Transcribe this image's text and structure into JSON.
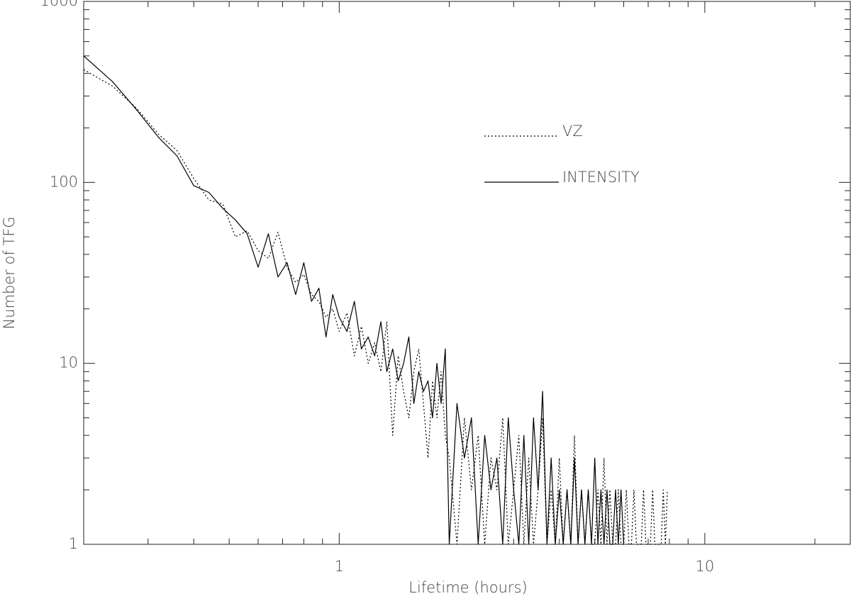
{
  "chart_data": {
    "type": "line",
    "x_label": "Lifetime (hours)",
    "y_label": "Number of TFG",
    "log_x": true,
    "log_y": true,
    "xlim": [
      0.2,
      25
    ],
    "ylim": [
      1,
      1000
    ],
    "xticks": [
      1,
      10
    ],
    "yticks": [
      1,
      10,
      100,
      1000
    ],
    "xminorticks": [
      0.3,
      0.4,
      0.5,
      0.6,
      0.7,
      0.8,
      0.9,
      2,
      3,
      4,
      5,
      6,
      7,
      8,
      9,
      20
    ],
    "yminorticks": [
      2,
      3,
      4,
      5,
      6,
      7,
      8,
      9,
      20,
      30,
      40,
      50,
      60,
      70,
      80,
      90,
      200,
      300,
      400,
      500,
      600,
      700,
      800,
      900
    ],
    "legend": "upper center",
    "x": [
      0.2,
      0.24,
      0.28,
      0.32,
      0.36,
      0.4,
      0.44,
      0.48,
      0.52,
      0.56,
      0.6,
      0.64,
      0.68,
      0.72,
      0.76,
      0.8,
      0.84,
      0.88,
      0.92,
      0.96,
      1.0,
      1.05,
      1.1,
      1.15,
      1.2,
      1.25,
      1.3,
      1.35,
      1.4,
      1.45,
      1.5,
      1.55,
      1.6,
      1.65,
      1.7,
      1.75,
      1.8,
      1.85,
      1.9,
      1.95,
      2.0,
      2.1,
      2.2,
      2.3,
      2.4,
      2.5,
      2.6,
      2.7,
      2.8,
      2.9,
      3.0,
      3.1,
      3.2,
      3.3,
      3.4,
      3.5,
      3.6,
      3.7,
      3.8,
      3.9,
      4.0,
      4.1,
      4.2,
      4.3,
      4.4,
      4.5,
      4.6,
      4.7,
      4.8,
      4.9,
      5.0,
      5.1,
      5.2,
      5.3,
      5.4,
      5.5,
      5.6,
      5.7,
      5.8,
      5.9,
      6.0,
      6.1,
      6.2,
      6.3,
      6.4,
      6.5,
      6.6,
      6.7,
      6.8,
      6.9,
      7.0,
      7.1,
      7.2,
      7.3,
      7.4,
      7.5,
      7.6,
      7.7,
      7.8,
      7.9
    ],
    "series": [
      {
        "name": "VZ",
        "color": "#000000",
        "dash": "dotted",
        "values": [
          420,
          340,
          255,
          185,
          150,
          105,
          80,
          76,
          50,
          54,
          42,
          38,
          53,
          34,
          28,
          31,
          24,
          22,
          18,
          20,
          15,
          19,
          11,
          16,
          10,
          13,
          9,
          17,
          4,
          11,
          7,
          5,
          9,
          12,
          6,
          3,
          8,
          5,
          9,
          4,
          3,
          1,
          5,
          2,
          4,
          1,
          3,
          2,
          5,
          1,
          2,
          4,
          1,
          3,
          1,
          2,
          5,
          1,
          2,
          1,
          3,
          1,
          2,
          1,
          4,
          1,
          2,
          1,
          2,
          1,
          1,
          2,
          1,
          3,
          1,
          2,
          1,
          1,
          2,
          1,
          1,
          2,
          1,
          1,
          2,
          1,
          1,
          1,
          2,
          1,
          1,
          1,
          2,
          1,
          1,
          1,
          1,
          2,
          1,
          2
        ]
      },
      {
        "name": "INTENSITY",
        "color": "#000000",
        "dash": "solid",
        "values": [
          500,
          360,
          250,
          178,
          140,
          96,
          88,
          72,
          62,
          52,
          34,
          52,
          30,
          36,
          24,
          36,
          22,
          26,
          14,
          24,
          18,
          15,
          22,
          12,
          14,
          11,
          17,
          9,
          12,
          8,
          10,
          14,
          6,
          9,
          7,
          8,
          5,
          10,
          6,
          12,
          1,
          6,
          3,
          5,
          1,
          4,
          2,
          3,
          1,
          5,
          2,
          1,
          4,
          1,
          5,
          2,
          7,
          1,
          3,
          1,
          2,
          1,
          2,
          1,
          3,
          1,
          2,
          1,
          2,
          1,
          3,
          1,
          2,
          1,
          2,
          1,
          1,
          2,
          1,
          2,
          1,
          null,
          null,
          null,
          null,
          null,
          null,
          null,
          null,
          null,
          null,
          null,
          null,
          null,
          null,
          null,
          null,
          null,
          null,
          null
        ]
      }
    ]
  }
}
